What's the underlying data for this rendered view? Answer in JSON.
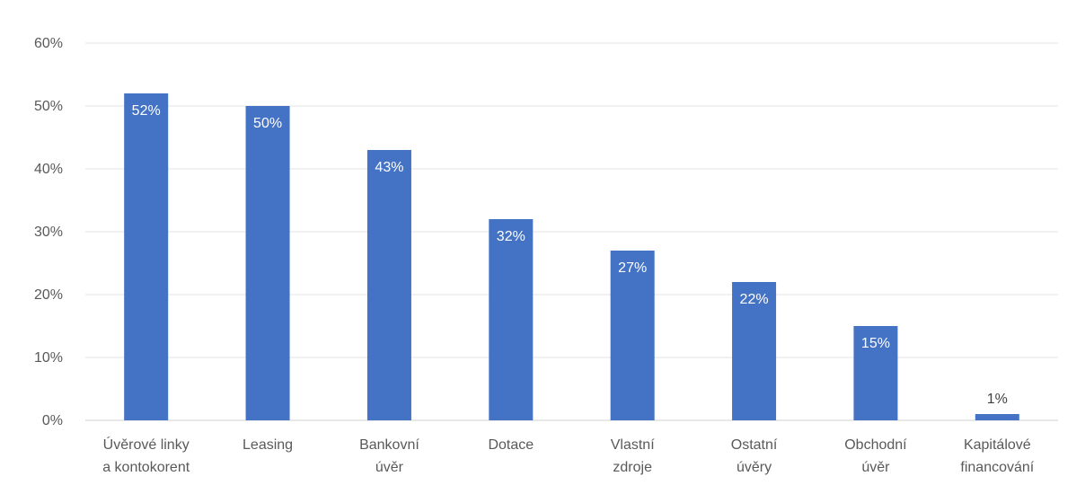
{
  "chart_data": {
    "type": "bar",
    "categories": [
      [
        "Úvěrové linky",
        "a kontokorent"
      ],
      [
        "Leasing"
      ],
      [
        "Bankovní",
        "úvěr"
      ],
      [
        "Dotace"
      ],
      [
        "Vlastní",
        "zdroje"
      ],
      [
        "Ostatní",
        "úvěry"
      ],
      [
        "Obchodní",
        "úvěr"
      ],
      [
        "Kapitálové",
        "financování"
      ]
    ],
    "values": [
      52,
      50,
      43,
      32,
      27,
      22,
      15,
      1
    ],
    "data_labels": [
      "52%",
      "50%",
      "43%",
      "32%",
      "27%",
      "22%",
      "15%",
      "1%"
    ],
    "y_ticks": [
      0,
      10,
      20,
      30,
      40,
      50,
      60
    ],
    "y_tick_labels": [
      "0%",
      "10%",
      "20%",
      "30%",
      "40%",
      "50%",
      "60%"
    ],
    "ylim": [
      0,
      60
    ],
    "title": "",
    "xlabel": "",
    "ylabel": "",
    "grid": true,
    "legend": "none",
    "bar_color": "#4472C4"
  }
}
